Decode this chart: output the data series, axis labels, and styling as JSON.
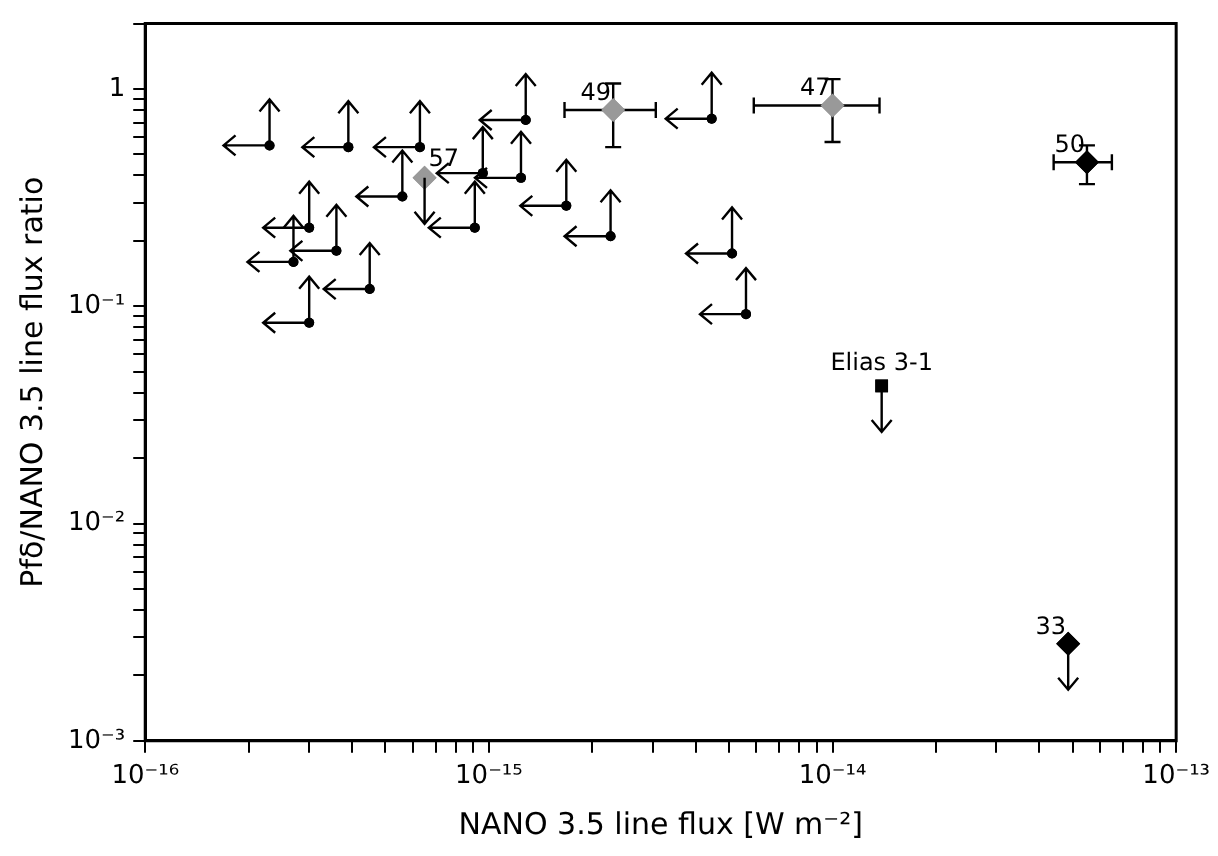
{
  "chart_data": {
    "type": "scatter",
    "xlabel": "NANO 3.5 line flux [W m⁻²]",
    "ylabel": "Pfδ/NANO 3.5 line flux ratio",
    "log": "xy",
    "grid": false,
    "legend": false,
    "xlim": [
      1e-16,
      1e-13
    ],
    "ylim": [
      0.001,
      2
    ],
    "xticks": [
      {
        "value": 1e-16,
        "label": "10⁻¹⁶"
      },
      {
        "value": 2e-16,
        "label": null
      },
      {
        "value": 3e-16,
        "label": null
      },
      {
        "value": 4e-16,
        "label": null
      },
      {
        "value": 5e-16,
        "label": null
      },
      {
        "value": 6e-16,
        "label": null
      },
      {
        "value": 7e-16,
        "label": null
      },
      {
        "value": 8e-16,
        "label": null
      },
      {
        "value": 9e-16,
        "label": null
      },
      {
        "value": 1e-15,
        "label": "10⁻¹⁵"
      },
      {
        "value": 2e-15,
        "label": null
      },
      {
        "value": 3e-15,
        "label": null
      },
      {
        "value": 4e-15,
        "label": null
      },
      {
        "value": 5e-15,
        "label": null
      },
      {
        "value": 6e-15,
        "label": null
      },
      {
        "value": 7e-15,
        "label": null
      },
      {
        "value": 8e-15,
        "label": null
      },
      {
        "value": 9e-15,
        "label": null
      },
      {
        "value": 1e-14,
        "label": "10⁻¹⁴"
      },
      {
        "value": 2e-14,
        "label": null
      },
      {
        "value": 3e-14,
        "label": null
      },
      {
        "value": 4e-14,
        "label": null
      },
      {
        "value": 5e-14,
        "label": null
      },
      {
        "value": 6e-14,
        "label": null
      },
      {
        "value": 7e-14,
        "label": null
      },
      {
        "value": 8e-14,
        "label": null
      },
      {
        "value": 9e-14,
        "label": null
      },
      {
        "value": 1e-13,
        "label": "10⁻¹³"
      }
    ],
    "yticks": [
      {
        "value": 0.001,
        "label": "10⁻³"
      },
      {
        "value": 0.002,
        "label": null
      },
      {
        "value": 0.003,
        "label": null
      },
      {
        "value": 0.004,
        "label": null
      },
      {
        "value": 0.005,
        "label": null
      },
      {
        "value": 0.006,
        "label": null
      },
      {
        "value": 0.007,
        "label": null
      },
      {
        "value": 0.008,
        "label": null
      },
      {
        "value": 0.009,
        "label": null
      },
      {
        "value": 0.01,
        "label": "10⁻²"
      },
      {
        "value": 0.02,
        "label": null
      },
      {
        "value": 0.03,
        "label": null
      },
      {
        "value": 0.04,
        "label": null
      },
      {
        "value": 0.05,
        "label": null
      },
      {
        "value": 0.06,
        "label": null
      },
      {
        "value": 0.07,
        "label": null
      },
      {
        "value": 0.08,
        "label": null
      },
      {
        "value": 0.09,
        "label": null
      },
      {
        "value": 0.1,
        "label": "10⁻¹"
      },
      {
        "value": 0.2,
        "label": null
      },
      {
        "value": 0.3,
        "label": null
      },
      {
        "value": 0.4,
        "label": null
      },
      {
        "value": 0.5,
        "label": null
      },
      {
        "value": 0.6,
        "label": null
      },
      {
        "value": 0.7,
        "label": null
      },
      {
        "value": 0.8,
        "label": null
      },
      {
        "value": 0.9,
        "label": null
      },
      {
        "value": 1,
        "label": "1"
      },
      {
        "value": 2,
        "label": null
      }
    ],
    "series": [
      {
        "color": "#000000",
        "marker": "circle",
        "x": [
          2.3e-16,
          3.9e-16,
          6.3e-16,
          5.6e-16,
          9.6e-16,
          1.24e-15,
          1.28e-15,
          9.1e-16,
          1.68e-15,
          2.26e-15,
          3e-16,
          2.7e-16,
          3.6e-16,
          4.5e-16,
          3e-16,
          4.45e-15,
          5.1e-15,
          5.6e-15
        ],
        "values": [
          0.55,
          0.54,
          0.54,
          0.32,
          0.41,
          0.39,
          0.72,
          0.23,
          0.29,
          0.21,
          0.23,
          0.16,
          0.18,
          0.12,
          0.084,
          0.73,
          0.175,
          0.092
        ]
      },
      {
        "color": "#999999",
        "marker": "diamond",
        "x": [
          2.3e-15,
          1e-14
        ],
        "values": [
          0.8,
          0.84
        ],
        "xerrors": [
          [
            1.66e-15,
            3.06e-15
          ],
          [
            5.9e-15,
            1.37e-14
          ]
        ],
        "errors": [
          [
            0.54,
            1.06
          ],
          [
            0.57,
            1.11
          ]
        ]
      },
      {
        "color": "#999999",
        "marker": "diamond",
        "x": [
          6.5e-16
        ],
        "values": [
          0.39
        ]
      },
      {
        "color": "#000000",
        "marker": "diamond",
        "x": [
          5.5e-14
        ],
        "values": [
          0.46
        ],
        "xerrors": [
          [
            4.4e-14,
            6.5e-14
          ]
        ],
        "errors": [
          [
            0.365,
            0.55
          ]
        ]
      },
      {
        "color": "#000000",
        "marker": "diamond",
        "x": [
          4.85e-14
        ],
        "values": [
          0.0028
        ]
      },
      {
        "color": "#000000",
        "marker": "square",
        "x": [
          1.39e-14
        ],
        "values": [
          0.043
        ]
      }
    ],
    "annotations": [
      {
        "text": "49",
        "x": 2.3e-15,
        "y": 0.8
      },
      {
        "text": "57",
        "x": 6.5e-16,
        "y": 0.39
      },
      {
        "text": "47",
        "x": 1e-14,
        "y": 0.84
      },
      {
        "text": "50",
        "x": 5.5e-14,
        "y": 0.46
      },
      {
        "text": "33",
        "x": 4.85e-14,
        "y": 0.0028
      },
      {
        "text": "Elias 3-1",
        "x": 1.39e-14,
        "y": 0.043
      }
    ]
  }
}
